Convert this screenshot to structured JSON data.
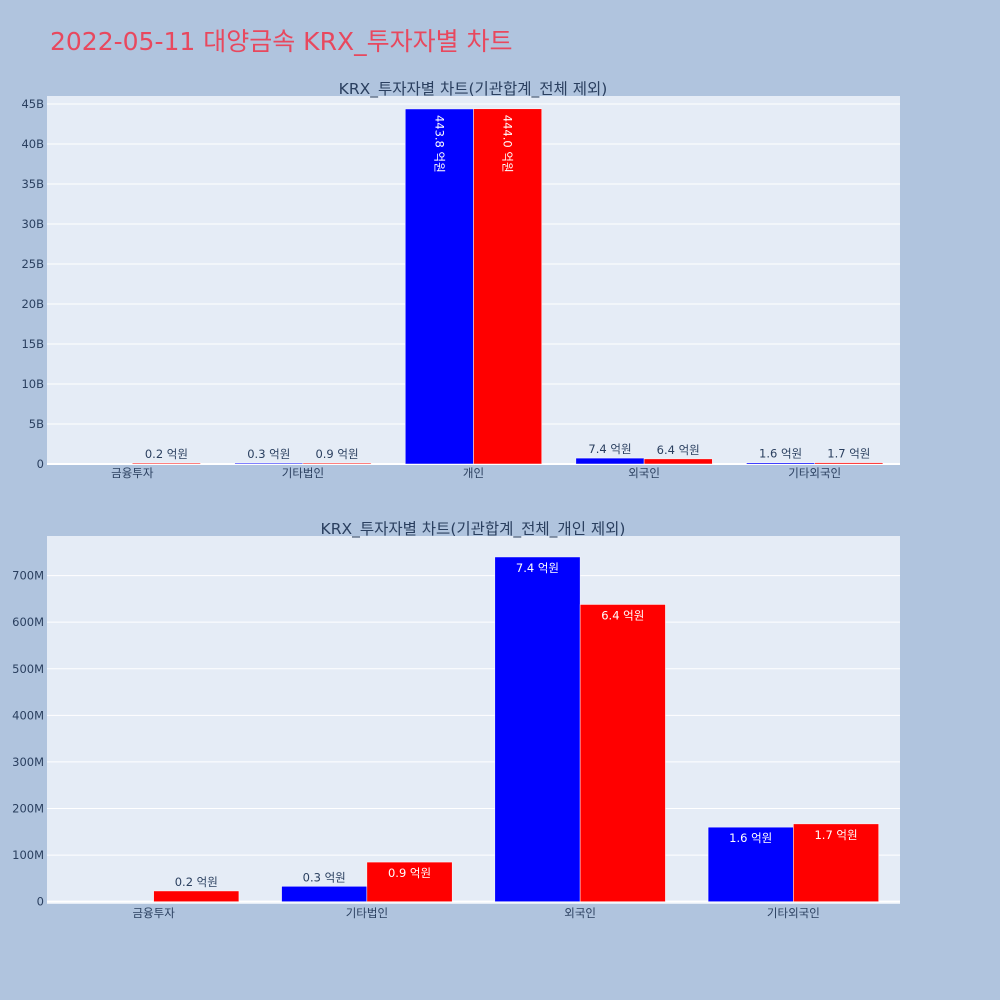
{
  "page_title": "2022-05-11 대양금속 KRX_투자자별 차트",
  "colors": {
    "background": "#b0c4de",
    "plot_bg": "#e5ecf6",
    "series_buy": "#0000ff",
    "series_sell": "#ff0000",
    "title": "#e8485e",
    "text": "#2a3f5f"
  },
  "chart_data": [
    {
      "type": "bar",
      "title": "KRX_투자자별 차트(기관합계_전체 제외)",
      "categories": [
        "금융투자",
        "기타법인",
        "개인",
        "외국인",
        "기타외국인"
      ],
      "ylim": [
        0,
        46000000000
      ],
      "yticks": [
        0,
        5000000000,
        10000000000,
        15000000000,
        20000000000,
        25000000000,
        30000000000,
        35000000000,
        40000000000,
        45000000000
      ],
      "ytick_labels": [
        "0",
        "5B",
        "10B",
        "15B",
        "20B",
        "25B",
        "30B",
        "35B",
        "40B",
        "45B"
      ],
      "grid": true,
      "series": [
        {
          "color": "#0000ff",
          "values": [
            0,
            30000000,
            44380000000,
            740000000,
            160000000
          ],
          "labels": [
            "",
            "0.3 억원",
            "443.8 억원",
            "7.4 억원",
            "1.6 억원"
          ]
        },
        {
          "color": "#ff0000",
          "values": [
            20000000,
            90000000,
            44400000000,
            640000000,
            170000000
          ],
          "labels": [
            "0.2 억원",
            "0.9 억원",
            "444.0 억원",
            "6.4 억원",
            "1.7 억원"
          ]
        }
      ]
    },
    {
      "type": "bar",
      "title": "KRX_투자자별 차트(기관합계_전체_개인 제외)",
      "categories": [
        "금융투자",
        "기타법인",
        "외국인",
        "기타외국인"
      ],
      "ylim": [
        -5000000,
        785000000
      ],
      "yticks": [
        0,
        100000000,
        200000000,
        300000000,
        400000000,
        500000000,
        600000000,
        700000000
      ],
      "ytick_labels": [
        "0",
        "100M",
        "200M",
        "300M",
        "400M",
        "500M",
        "600M",
        "700M"
      ],
      "grid": true,
      "series": [
        {
          "color": "#0000ff",
          "values": [
            0,
            33000000,
            740000000,
            160000000
          ],
          "labels": [
            "",
            "0.3 억원",
            "7.4 억원",
            "1.6 억원"
          ]
        },
        {
          "color": "#ff0000",
          "values": [
            23000000,
            85000000,
            638000000,
            167000000
          ],
          "labels": [
            "0.2 억원",
            "0.9 억원",
            "6.4 억원",
            "1.7 억원"
          ]
        }
      ]
    }
  ]
}
